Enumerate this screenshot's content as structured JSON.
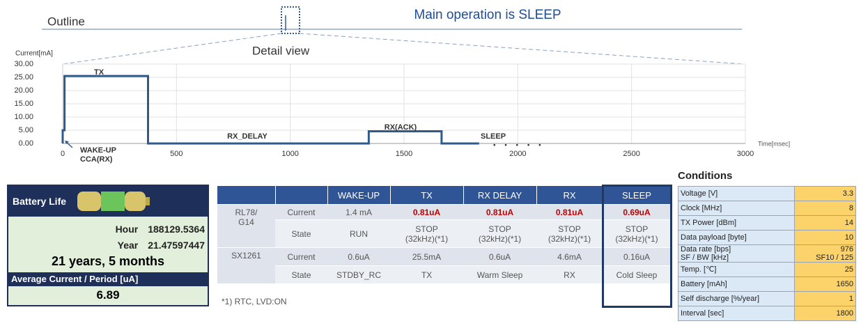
{
  "header": {
    "outline": "Outline",
    "main": "Main operation is SLEEP",
    "detail": "Detail view"
  },
  "chart_data": {
    "type": "line",
    "y_label": "Current[mA]",
    "x_label": "Time[msec]",
    "x": [
      0,
      0,
      8,
      8,
      375,
      375,
      1345,
      1345,
      1665,
      1665,
      1830
    ],
    "values": [
      0,
      5,
      5,
      25.5,
      25.5,
      0,
      0,
      4.6,
      4.6,
      0,
      0
    ],
    "color": "#2e5a8c",
    "xlim": [
      0,
      3000
    ],
    "xticks": [
      0,
      500,
      1000,
      1500,
      2000,
      2500,
      3000
    ],
    "ylim": [
      0,
      30
    ],
    "yticks": [
      {
        "value": 0,
        "label": "0.00"
      },
      {
        "value": 5,
        "label": "5.00"
      },
      {
        "value": 10,
        "label": "10.00"
      },
      {
        "value": 15,
        "label": "15.00"
      },
      {
        "value": 20,
        "label": "20.00"
      },
      {
        "value": 25,
        "label": "25.00"
      },
      {
        "value": 30,
        "label": "30.00"
      }
    ],
    "grid": true,
    "annotations": [
      "TX",
      "RX_DELAY",
      "RX(ACK)",
      "SLEEP",
      "WAKE-UP",
      "CCA(RX)"
    ]
  },
  "battery": {
    "title": "Battery Life",
    "hour_label": "Hour",
    "hour": "188129.5364",
    "year_label": "Year",
    "year": "21.47597447",
    "summary": "21 years, 5 months",
    "avg_label": "Average Current / Period [uA]",
    "avg": "6.89"
  },
  "table": {
    "columns": [
      "WAKE-UP",
      "TX",
      "RX DELAY",
      "RX",
      "SLEEP"
    ],
    "rows": [
      {
        "device": "RL78/\nG14",
        "field": "Current",
        "cells": [
          "1.4 mA",
          "0.81uA",
          "0.81uA",
          "0.81uA",
          "0.69uA"
        ]
      },
      {
        "field": "State",
        "cells": [
          "RUN",
          "STOP\n(32kHz)(*1)",
          "STOP\n(32kHz)(*1)",
          "STOP\n(32kHz)(*1)",
          "STOP\n(32kHz)(*1)"
        ]
      },
      {
        "device": "SX1261",
        "field": "Current",
        "cells": [
          "0.6uA",
          "25.5mA",
          "0.6uA",
          "4.6mA",
          "0.16uA"
        ]
      },
      {
        "field": "State",
        "cells": [
          "STDBY_RC",
          "TX",
          "Warm Sleep",
          "RX",
          "Cold Sleep"
        ]
      }
    ],
    "footnote": "*1) RTC, LVD:ON"
  },
  "conditions": {
    "title": "Conditions",
    "rows": [
      [
        "Voltage [V]",
        "3.3"
      ],
      [
        "Clock [MHz]",
        "8"
      ],
      [
        "TX Power [dBm]",
        "14"
      ],
      [
        "Data payload [byte]",
        "10"
      ],
      [
        "Data rate [bps]\nSF / BW [kHz]",
        "976\nSF10 / 125"
      ],
      [
        "Temp. [℃]",
        "25"
      ],
      [
        "Battery [mAh]",
        "1650"
      ],
      [
        "Self discharge [%/year]",
        "1"
      ],
      [
        "Interval [sec]",
        "1800"
      ]
    ]
  }
}
